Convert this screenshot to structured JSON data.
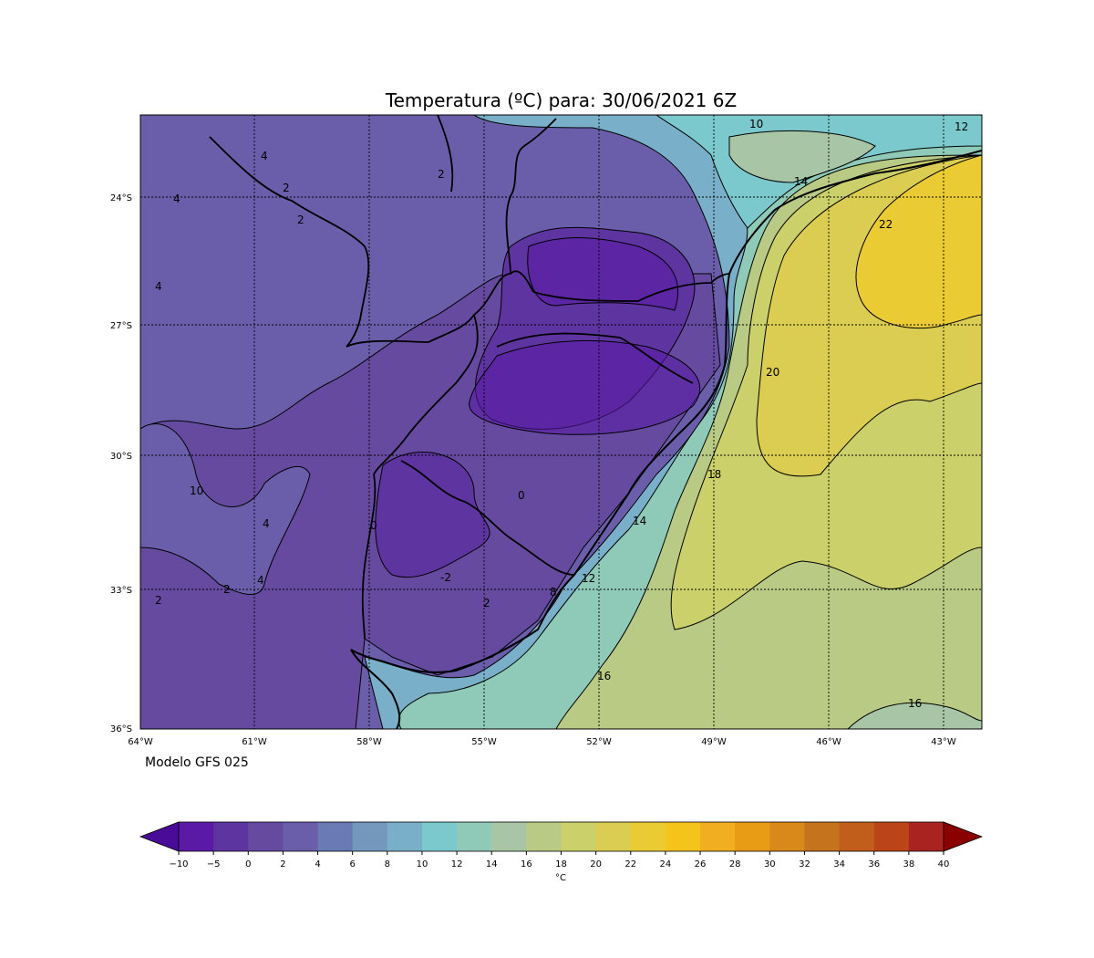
{
  "figure": {
    "title": "Temperatura (ºC) para: 30/06/2021 6Z",
    "model_label": "Modelo GFS 025"
  },
  "map": {
    "lat_ticks": [
      "24°S",
      "27°S",
      "30°S",
      "33°S",
      "36°S"
    ],
    "lon_ticks": [
      "64°W",
      "61°W",
      "58°W",
      "55°W",
      "52°W",
      "49°W",
      "46°W",
      "43°W"
    ],
    "contour_labels": [
      "10",
      "12",
      "14",
      "22",
      "20",
      "18",
      "16",
      "16",
      "14",
      "12",
      "8",
      "4",
      "4",
      "4",
      "2",
      "2",
      "2",
      "2",
      "2",
      "0",
      "0",
      "4",
      "4",
      "2",
      "-2",
      "10"
    ]
  },
  "colorbar": {
    "unit": "°C",
    "ticks": [
      "−10",
      "−5",
      "0",
      "2",
      "4",
      "6",
      "8",
      "10",
      "12",
      "14",
      "16",
      "18",
      "20",
      "22",
      "24",
      "26",
      "28",
      "30",
      "32",
      "34",
      "36",
      "38",
      "40"
    ],
    "colors": [
      "#4a0c98",
      "#5a1aa6",
      "#5e34a0",
      "#654aa0",
      "#6a5eaa",
      "#6a7ab4",
      "#7497bc",
      "#79afc8",
      "#7bc9cd",
      "#8fc9b8",
      "#a8c6a6",
      "#b9ca84",
      "#ccd06a",
      "#dacd52",
      "#eacb33",
      "#f4c41b",
      "#f0ae20",
      "#e89b15",
      "#d9891a",
      "#c6731d",
      "#c25e1c",
      "#bb4518",
      "#a92421",
      "#8b0000"
    ],
    "extend_low_color": "#4a0c98",
    "extend_high_color": "#8b0000"
  }
}
